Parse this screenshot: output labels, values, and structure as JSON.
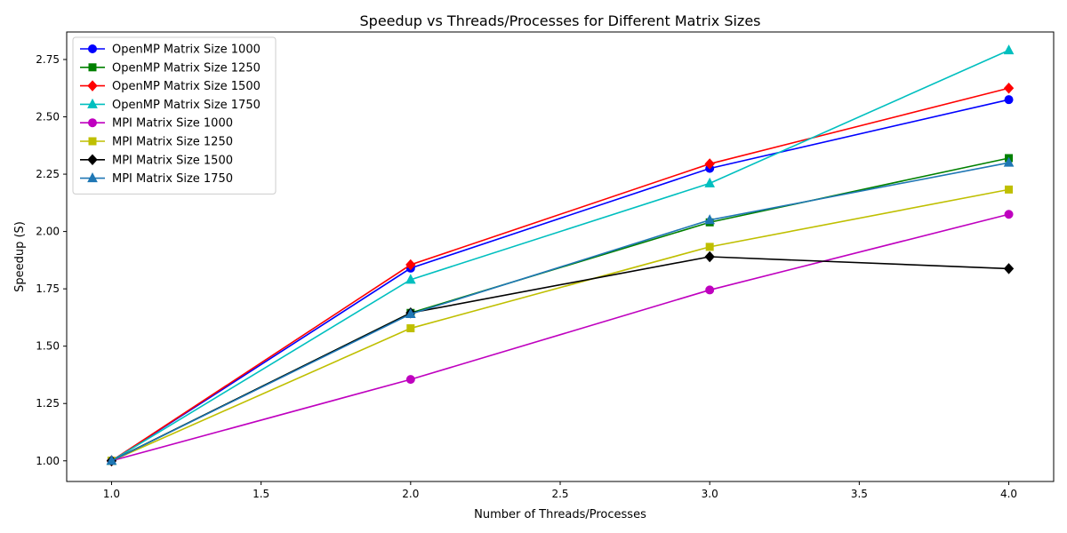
{
  "chart_data": {
    "type": "line",
    "title": "Speedup vs Threads/Processes for Different Matrix Sizes",
    "xlabel": "Number of Threads/Processes",
    "ylabel": "Speedup (S)",
    "x": [
      1,
      2,
      3,
      4
    ],
    "xlim": [
      0.85,
      4.15
    ],
    "ylim": [
      0.91,
      2.87
    ],
    "xticks": [
      "1.0",
      "1.5",
      "2.0",
      "2.5",
      "3.0",
      "3.5",
      "4.0"
    ],
    "yticks": [
      "1.00",
      "1.25",
      "1.50",
      "1.75",
      "2.00",
      "2.25",
      "2.50",
      "2.75"
    ],
    "grid": false,
    "legend_position": "top-left",
    "series": [
      {
        "name": "OpenMP Matrix Size 1000",
        "values": [
          1.0,
          1.84,
          2.275,
          2.575
        ],
        "color": "#0000ff",
        "marker": "circle"
      },
      {
        "name": "OpenMP Matrix Size 1250",
        "values": [
          1.0,
          1.645,
          2.04,
          2.32
        ],
        "color": "#008000",
        "marker": "square"
      },
      {
        "name": "OpenMP Matrix Size 1500",
        "values": [
          1.0,
          1.855,
          2.295,
          2.625
        ],
        "color": "#ff0000",
        "marker": "diamond"
      },
      {
        "name": "OpenMP Matrix Size 1750",
        "values": [
          1.0,
          1.79,
          2.21,
          2.79
        ],
        "color": "#00bfbf",
        "marker": "triangle"
      },
      {
        "name": "MPI Matrix Size 1000",
        "values": [
          1.0,
          1.355,
          1.745,
          2.075
        ],
        "color": "#bf00bf",
        "marker": "circle"
      },
      {
        "name": "MPI Matrix Size 1250",
        "values": [
          1.0,
          1.578,
          1.933,
          2.183
        ],
        "color": "#bfbf00",
        "marker": "square"
      },
      {
        "name": "MPI Matrix Size 1500",
        "values": [
          1.0,
          1.645,
          1.89,
          1.838
        ],
        "color": "#000000",
        "marker": "diamond"
      },
      {
        "name": "MPI Matrix Size 1750",
        "values": [
          1.0,
          1.64,
          2.05,
          2.3
        ],
        "color": "#1f77b4",
        "marker": "triangle"
      }
    ]
  }
}
